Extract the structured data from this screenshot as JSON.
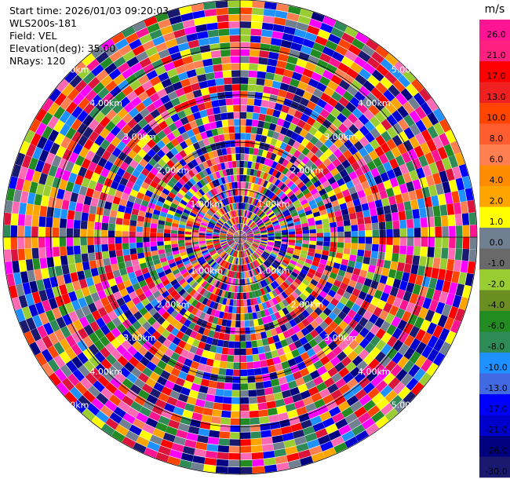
{
  "info": {
    "start_time": "Start time: 2026/01/03 09:20:03",
    "site": "WLS200s-181",
    "field": "Field: VEL",
    "elevation": "Elevation(deg): 35.00",
    "nrays": "NRays: 120"
  },
  "chart_data": {
    "type": "heatmap",
    "projection": "polar-ppi",
    "field": "VEL",
    "units": "m/s",
    "nrays": 120,
    "elevation_deg": 35.0,
    "max_range_km": 5.0,
    "range_ring_labels": [
      "1.00km",
      "2.00km",
      "3.00km",
      "4.00km",
      "5.00km"
    ],
    "grid": true,
    "legend_placement": "right",
    "colorbar": {
      "title": "m/s",
      "tick_labels": [
        "26.0",
        "21.0",
        "17.0",
        "13.0",
        "10.0",
        "8.0",
        "6.0",
        "4.0",
        "2.0",
        "1.0",
        "0.0",
        "-1.0",
        "-2.0",
        "-4.0",
        "-6.0",
        "-8.0",
        "-10.0",
        "-13.0",
        "-17.0",
        "-21.0",
        "-26.0",
        "-30.0"
      ],
      "colors": [
        "#ff1493",
        "#ff2080",
        "#ff0000",
        "#ee2020",
        "#ff4500",
        "#ff5c30",
        "#ff7f50",
        "#ff8c00",
        "#ffa500",
        "#ffff00",
        "#708090",
        "#696969",
        "#9acd32",
        "#6b8e23",
        "#228b22",
        "#2e8b57",
        "#1e90ff",
        "#4169e1",
        "#0000ff",
        "#0000cd",
        "#000080",
        "#191970"
      ]
    },
    "velocity_palette": [
      "#ff1493",
      "#ff0000",
      "#ff4500",
      "#ff7f50",
      "#ffa500",
      "#ffff00",
      "#708090",
      "#9acd32",
      "#228b22",
      "#2e8b57",
      "#1e90ff",
      "#0000ff",
      "#0000cd",
      "#000080",
      "#191970",
      "#ff69b4",
      "#ff00ff",
      "#dc143c"
    ]
  }
}
